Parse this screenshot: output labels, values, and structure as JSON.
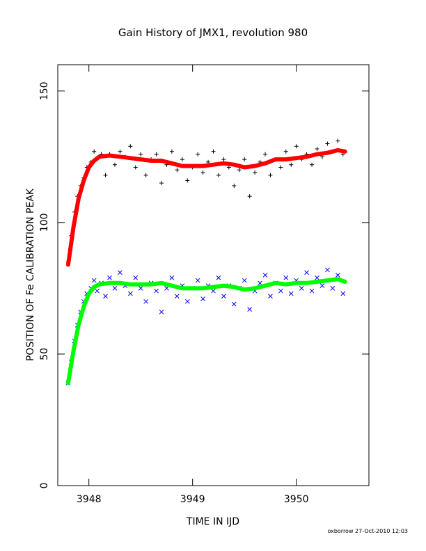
{
  "chart_data": {
    "type": "scatter",
    "title": "Gain History of JMX1, revolution 980",
    "xlabel": "TIME IN IJD",
    "ylabel": "POSITION OF Fe CALIBRATION PEAK",
    "xlim": [
      3947.7,
      3950.7
    ],
    "ylim": [
      0,
      160
    ],
    "xticks": [
      3948,
      3949,
      3950
    ],
    "yticks": [
      0,
      50,
      100,
      150
    ],
    "grid": false,
    "legend": "none",
    "footer": "oxborrow 27-Oct-2010 12:03",
    "series": [
      {
        "marker": "plus",
        "color": "#000000",
        "points": [
          [
            3947.8,
            85
          ],
          [
            3947.83,
            95
          ],
          [
            3947.86,
            104
          ],
          [
            3947.89,
            110
          ],
          [
            3947.92,
            114
          ],
          [
            3947.95,
            117
          ],
          [
            3947.98,
            121
          ],
          [
            3948.02,
            123
          ],
          [
            3948.05,
            127
          ],
          [
            3948.08,
            124
          ],
          [
            3948.12,
            126
          ],
          [
            3948.16,
            118
          ],
          [
            3948.2,
            126
          ],
          [
            3948.25,
            122
          ],
          [
            3948.3,
            127
          ],
          [
            3948.35,
            125
          ],
          [
            3948.4,
            129
          ],
          [
            3948.45,
            121
          ],
          [
            3948.5,
            126
          ],
          [
            3948.55,
            118
          ],
          [
            3948.6,
            124
          ],
          [
            3948.65,
            126
          ],
          [
            3948.7,
            115
          ],
          [
            3948.75,
            122
          ],
          [
            3948.8,
            127
          ],
          [
            3948.85,
            120
          ],
          [
            3948.9,
            124
          ],
          [
            3948.95,
            116
          ],
          [
            3949.0,
            121
          ],
          [
            3949.05,
            126
          ],
          [
            3949.1,
            119
          ],
          [
            3949.15,
            123
          ],
          [
            3949.2,
            127
          ],
          [
            3949.25,
            118
          ],
          [
            3949.3,
            124
          ],
          [
            3949.35,
            121
          ],
          [
            3949.4,
            114
          ],
          [
            3949.45,
            120
          ],
          [
            3949.5,
            124
          ],
          [
            3949.55,
            110
          ],
          [
            3949.6,
            119
          ],
          [
            3949.65,
            123
          ],
          [
            3949.7,
            126
          ],
          [
            3949.75,
            118
          ],
          [
            3949.8,
            124
          ],
          [
            3949.85,
            121
          ],
          [
            3949.9,
            127
          ],
          [
            3949.95,
            122
          ],
          [
            3950.0,
            129
          ],
          [
            3950.05,
            124
          ],
          [
            3950.1,
            126
          ],
          [
            3950.15,
            122
          ],
          [
            3950.2,
            128
          ],
          [
            3950.25,
            125
          ],
          [
            3950.3,
            130
          ],
          [
            3950.35,
            127
          ],
          [
            3950.4,
            131
          ],
          [
            3950.45,
            126
          ]
        ]
      },
      {
        "marker": "cross",
        "color": "#0000ff",
        "points": [
          [
            3947.8,
            39
          ],
          [
            3947.83,
            47
          ],
          [
            3947.86,
            55
          ],
          [
            3947.89,
            61
          ],
          [
            3947.92,
            66
          ],
          [
            3947.95,
            70
          ],
          [
            3947.98,
            73
          ],
          [
            3948.02,
            75
          ],
          [
            3948.05,
            78
          ],
          [
            3948.08,
            74
          ],
          [
            3948.12,
            77
          ],
          [
            3948.16,
            72
          ],
          [
            3948.2,
            79
          ],
          [
            3948.25,
            75
          ],
          [
            3948.3,
            81
          ],
          [
            3948.35,
            76
          ],
          [
            3948.4,
            73
          ],
          [
            3948.45,
            79
          ],
          [
            3948.5,
            75
          ],
          [
            3948.55,
            70
          ],
          [
            3948.6,
            77
          ],
          [
            3948.65,
            74
          ],
          [
            3948.7,
            66
          ],
          [
            3948.75,
            75
          ],
          [
            3948.8,
            79
          ],
          [
            3948.85,
            72
          ],
          [
            3948.9,
            76
          ],
          [
            3948.95,
            70
          ],
          [
            3949.0,
            75
          ],
          [
            3949.05,
            78
          ],
          [
            3949.1,
            71
          ],
          [
            3949.15,
            76
          ],
          [
            3949.2,
            74
          ],
          [
            3949.25,
            79
          ],
          [
            3949.3,
            72
          ],
          [
            3949.35,
            76
          ],
          [
            3949.4,
            69
          ],
          [
            3949.45,
            75
          ],
          [
            3949.5,
            78
          ],
          [
            3949.55,
            67
          ],
          [
            3949.6,
            74
          ],
          [
            3949.65,
            77
          ],
          [
            3949.7,
            80
          ],
          [
            3949.75,
            72
          ],
          [
            3949.8,
            77
          ],
          [
            3949.85,
            74
          ],
          [
            3949.9,
            79
          ],
          [
            3949.95,
            73
          ],
          [
            3950.0,
            78
          ],
          [
            3950.05,
            75
          ],
          [
            3950.1,
            81
          ],
          [
            3950.15,
            74
          ],
          [
            3950.2,
            79
          ],
          [
            3950.25,
            76
          ],
          [
            3950.3,
            82
          ],
          [
            3950.35,
            75
          ],
          [
            3950.4,
            80
          ],
          [
            3950.45,
            73
          ]
        ]
      },
      {
        "marker": "line",
        "color": "#ff0000",
        "points": [
          [
            3947.8,
            84
          ],
          [
            3947.85,
            98
          ],
          [
            3947.9,
            109
          ],
          [
            3947.95,
            116
          ],
          [
            3948.0,
            121
          ],
          [
            3948.05,
            123.5
          ],
          [
            3948.1,
            125
          ],
          [
            3948.2,
            125.5
          ],
          [
            3948.3,
            125
          ],
          [
            3948.4,
            124.5
          ],
          [
            3948.5,
            124
          ],
          [
            3948.6,
            123.5
          ],
          [
            3948.7,
            123.5
          ],
          [
            3948.8,
            122.5
          ],
          [
            3948.9,
            121.5
          ],
          [
            3949.0,
            121.5
          ],
          [
            3949.1,
            121.5
          ],
          [
            3949.2,
            122
          ],
          [
            3949.3,
            122.5
          ],
          [
            3949.4,
            122
          ],
          [
            3949.5,
            121
          ],
          [
            3949.6,
            121.5
          ],
          [
            3949.7,
            122.5
          ],
          [
            3949.8,
            124
          ],
          [
            3949.9,
            124
          ],
          [
            3950.0,
            124.5
          ],
          [
            3950.1,
            125
          ],
          [
            3950.2,
            126
          ],
          [
            3950.3,
            126.5
          ],
          [
            3950.4,
            127.5
          ],
          [
            3950.47,
            127
          ]
        ]
      },
      {
        "marker": "line",
        "color": "#00ff00",
        "points": [
          [
            3947.8,
            39
          ],
          [
            3947.85,
            51
          ],
          [
            3947.9,
            61
          ],
          [
            3947.95,
            68
          ],
          [
            3948.0,
            73
          ],
          [
            3948.05,
            75.5
          ],
          [
            3948.1,
            76.5
          ],
          [
            3948.2,
            77
          ],
          [
            3948.3,
            77
          ],
          [
            3948.4,
            76.5
          ],
          [
            3948.5,
            76.5
          ],
          [
            3948.6,
            76.5
          ],
          [
            3948.7,
            77
          ],
          [
            3948.8,
            76
          ],
          [
            3948.9,
            75
          ],
          [
            3949.0,
            75
          ],
          [
            3949.1,
            75
          ],
          [
            3949.2,
            75.5
          ],
          [
            3949.3,
            76
          ],
          [
            3949.4,
            75.5
          ],
          [
            3949.5,
            74.5
          ],
          [
            3949.6,
            75
          ],
          [
            3949.7,
            76
          ],
          [
            3949.8,
            77
          ],
          [
            3949.9,
            76.5
          ],
          [
            3950.0,
            77
          ],
          [
            3950.1,
            77
          ],
          [
            3950.2,
            77.5
          ],
          [
            3950.3,
            78
          ],
          [
            3950.4,
            78.5
          ],
          [
            3950.47,
            77.5
          ]
        ]
      }
    ]
  }
}
